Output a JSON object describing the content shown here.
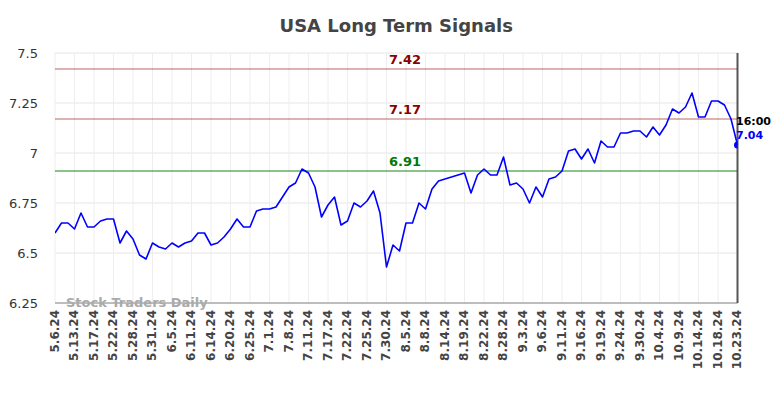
{
  "chart_data": {
    "type": "line",
    "title": "USA Long Term Signals",
    "categories": [
      "5.6.24",
      null,
      null,
      "5.13.24",
      null,
      null,
      "5.17.24",
      null,
      null,
      "5.22.24",
      null,
      null,
      "5.28.24",
      null,
      null,
      "5.31.24",
      null,
      null,
      "6.5.24",
      null,
      null,
      "6.11.24",
      null,
      null,
      "6.14.24",
      null,
      null,
      "6.20.24",
      null,
      null,
      "6.25.24",
      null,
      null,
      "7.1.24",
      null,
      null,
      "7.8.24",
      null,
      null,
      "7.11.24",
      null,
      null,
      "7.17.24",
      null,
      null,
      "7.22.24",
      null,
      null,
      "7.25.24",
      null,
      null,
      "7.30.24",
      null,
      null,
      "8.5.24",
      null,
      null,
      "8.8.24",
      null,
      null,
      "8.14.24",
      null,
      null,
      "8.19.24",
      null,
      null,
      "8.22.24",
      null,
      null,
      "8.28.24",
      null,
      null,
      "9.3.24",
      null,
      null,
      "9.6.24",
      null,
      null,
      "9.11.24",
      null,
      null,
      "9.16.24",
      null,
      null,
      "9.19.24",
      null,
      null,
      "9.24.24",
      null,
      null,
      "9.30.24",
      null,
      null,
      "10.4.24",
      null,
      null,
      "10.9.24",
      null,
      null,
      "10.14.24",
      null,
      null,
      "10.18.24",
      null,
      null,
      "10.23.24"
    ],
    "series": [
      {
        "color": "#0000ff",
        "values": [
          6.6,
          6.65,
          6.65,
          6.62,
          6.7,
          6.63,
          6.63,
          6.66,
          6.67,
          6.67,
          6.55,
          6.61,
          6.57,
          6.49,
          6.47,
          6.55,
          6.53,
          6.52,
          6.55,
          6.53,
          6.55,
          6.56,
          6.6,
          6.6,
          6.54,
          6.55,
          6.58,
          6.62,
          6.67,
          6.63,
          6.63,
          6.71,
          6.72,
          6.72,
          6.73,
          6.78,
          6.83,
          6.85,
          6.92,
          6.9,
          6.83,
          6.68,
          6.74,
          6.78,
          6.64,
          6.66,
          6.75,
          6.73,
          6.76,
          6.81,
          6.7,
          6.43,
          6.54,
          6.51,
          6.65,
          6.65,
          6.75,
          6.72,
          6.82,
          6.86,
          6.87,
          6.88,
          6.89,
          6.9,
          6.8,
          6.89,
          6.92,
          6.89,
          6.89,
          6.98,
          6.84,
          6.85,
          6.82,
          6.75,
          6.83,
          6.78,
          6.87,
          6.88,
          6.91,
          7.01,
          7.02,
          6.97,
          7.02,
          6.95,
          7.06,
          7.03,
          7.03,
          7.1,
          7.1,
          7.11,
          7.11,
          7.08,
          7.13,
          7.09,
          7.14,
          7.22,
          7.2,
          7.23,
          7.3,
          7.18,
          7.18,
          7.26,
          7.26,
          7.24,
          7.17,
          7.04
        ]
      }
    ],
    "ylim": [
      6.25,
      7.5
    ],
    "yticks": [
      6.25,
      6.5,
      6.75,
      7,
      7.25,
      7.5
    ],
    "grid": true,
    "reference_lines": [
      {
        "value": 7.42,
        "color": "#8b0000"
      },
      {
        "value": 7.17,
        "color": "#8b0000"
      },
      {
        "value": 6.91,
        "color": "#007a00"
      }
    ],
    "end_annotation": "16:00",
    "watermark": "Stock Traders Daily"
  }
}
